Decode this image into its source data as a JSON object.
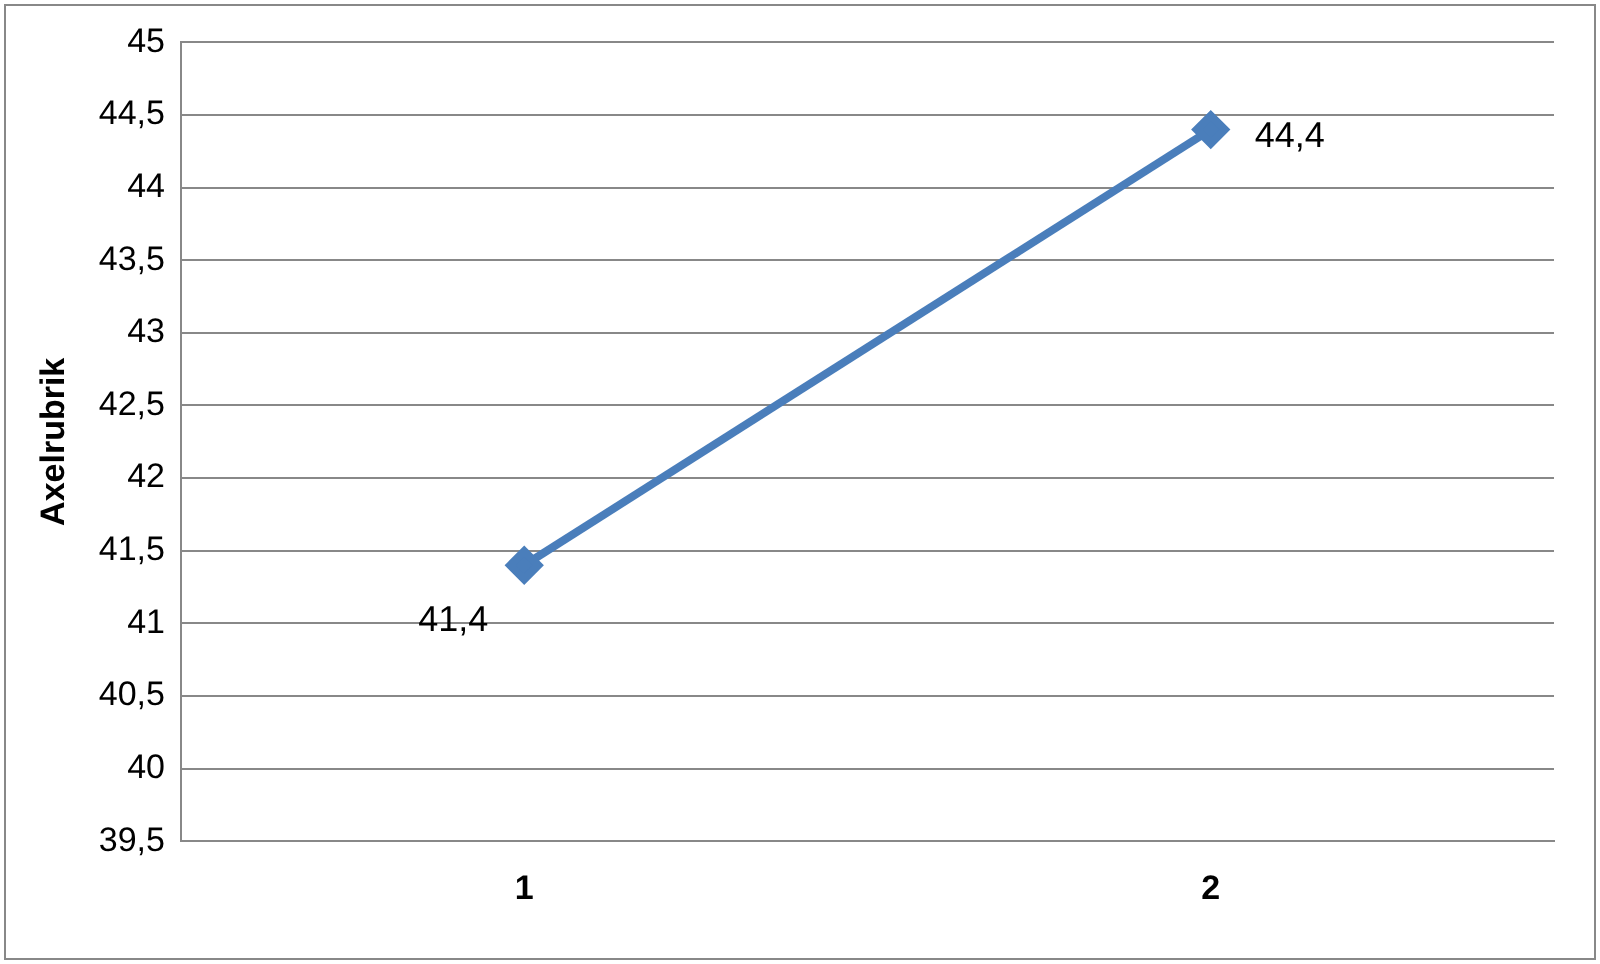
{
  "chart_data": {
    "type": "line",
    "ylabel": "Axelrubrik",
    "categories": [
      "1",
      "2"
    ],
    "series": [
      {
        "color": "#4a7ebb",
        "values": [
          41.4,
          44.4
        ],
        "value_labels": [
          "41,4",
          "44,4"
        ]
      }
    ],
    "ylim": [
      39.5,
      45
    ],
    "yticks": [
      {
        "value": 39.5,
        "label": "39,5"
      },
      {
        "value": 40,
        "label": "40"
      },
      {
        "value": 40.5,
        "label": "40,5"
      },
      {
        "value": 41,
        "label": "41"
      },
      {
        "value": 41.5,
        "label": "41,5"
      },
      {
        "value": 42,
        "label": "42"
      },
      {
        "value": 42.5,
        "label": "42,5"
      },
      {
        "value": 43,
        "label": "43"
      },
      {
        "value": 43.5,
        "label": "43,5"
      },
      {
        "value": 44,
        "label": "44"
      },
      {
        "value": 44.5,
        "label": "44,5"
      },
      {
        "value": 45,
        "label": "45"
      }
    ],
    "grid": "y",
    "legend": false,
    "marker": "diamond",
    "line_style": "solid"
  }
}
